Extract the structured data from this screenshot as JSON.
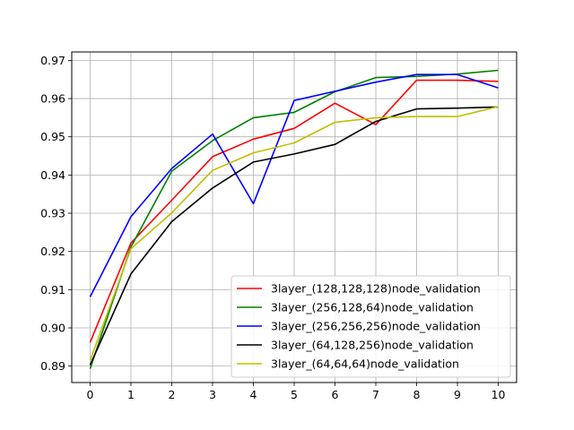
{
  "chart_data": {
    "type": "line",
    "title": "",
    "xlabel": "",
    "ylabel": "",
    "x": [
      0,
      1,
      2,
      3,
      4,
      5,
      6,
      7,
      8,
      9,
      10
    ],
    "xlim": [
      -0.45,
      10.45
    ],
    "ylim": [
      0.8857,
      0.9722
    ],
    "x_ticks": [
      0,
      1,
      2,
      3,
      4,
      5,
      6,
      7,
      8,
      9,
      10
    ],
    "y_ticks": [
      0.89,
      0.9,
      0.91,
      0.92,
      0.93,
      0.94,
      0.95,
      0.96,
      0.97
    ],
    "x_tick_labels": [
      "0",
      "1",
      "2",
      "3",
      "4",
      "5",
      "6",
      "7",
      "8",
      "9",
      "10"
    ],
    "y_tick_labels": [
      "0.89",
      "0.90",
      "0.91",
      "0.92",
      "0.93",
      "0.94",
      "0.95",
      "0.96",
      "0.97"
    ],
    "grid": true,
    "legend_position": "bottom-right",
    "series": [
      {
        "name": "3layer_(128,128,128)node_validation",
        "color": "#ff0000",
        "values": [
          0.8962,
          0.9222,
          0.9334,
          0.9448,
          0.9494,
          0.9522,
          0.9588,
          0.9532,
          0.9648,
          0.9648,
          0.9645
        ]
      },
      {
        "name": "3layer_(256,128,64)node_validation",
        "color": "#008000",
        "values": [
          0.8893,
          0.9212,
          0.941,
          0.949,
          0.955,
          0.9564,
          0.9618,
          0.9655,
          0.9658,
          0.9664,
          0.9674
        ]
      },
      {
        "name": "3layer_(256,256,256)node_validation",
        "color": "#0000ff",
        "values": [
          0.9081,
          0.9291,
          0.9417,
          0.9507,
          0.9325,
          0.9595,
          0.9619,
          0.9643,
          0.9663,
          0.9663,
          0.9628
        ]
      },
      {
        "name": "3layer_(64,128,256)node_validation",
        "color": "#000000",
        "values": [
          0.8903,
          0.9141,
          0.9278,
          0.9366,
          0.9434,
          0.9455,
          0.948,
          0.954,
          0.9573,
          0.9575,
          0.9578
        ]
      },
      {
        "name": "3layer_(64,64,64)node_validation",
        "color": "#bfbf00",
        "values": [
          0.8915,
          0.9207,
          0.9301,
          0.9412,
          0.9458,
          0.9484,
          0.9538,
          0.955,
          0.9553,
          0.9553,
          0.9579
        ]
      }
    ]
  }
}
